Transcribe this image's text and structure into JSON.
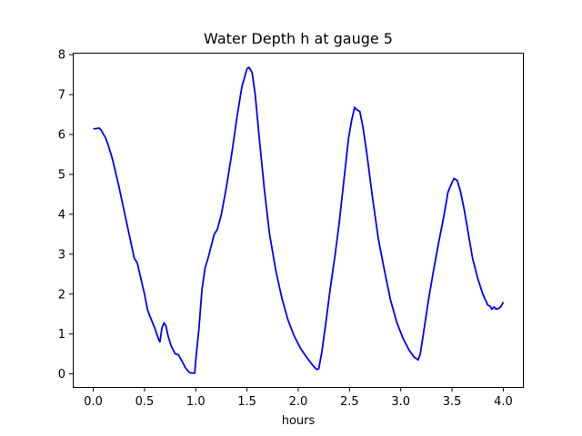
{
  "chart_data": {
    "type": "line",
    "title": "Water Depth h at gauge 5",
    "xlabel": "hours",
    "ylabel": "",
    "xlim": [
      -0.2,
      4.2
    ],
    "ylim": [
      -0.35,
      8.05
    ],
    "x_ticks": [
      0.0,
      0.5,
      1.0,
      1.5,
      2.0,
      2.5,
      3.0,
      3.5,
      4.0
    ],
    "x_tick_labels": [
      "0.0",
      "0.5",
      "1.0",
      "1.5",
      "2.0",
      "2.5",
      "3.0",
      "3.5",
      "4.0"
    ],
    "y_ticks": [
      0,
      1,
      2,
      3,
      4,
      5,
      6,
      7,
      8
    ],
    "y_tick_labels": [
      "0",
      "1",
      "2",
      "3",
      "4",
      "5",
      "6",
      "7",
      "8"
    ],
    "grid": false,
    "series": [
      {
        "color": "#0000ff",
        "points": [
          [
            0.0,
            6.14
          ],
          [
            0.03,
            6.15
          ],
          [
            0.06,
            6.16
          ],
          [
            0.08,
            6.1
          ],
          [
            0.1,
            6.0
          ],
          [
            0.12,
            5.92
          ],
          [
            0.15,
            5.7
          ],
          [
            0.18,
            5.45
          ],
          [
            0.2,
            5.25
          ],
          [
            0.25,
            4.7
          ],
          [
            0.3,
            4.1
          ],
          [
            0.35,
            3.5
          ],
          [
            0.4,
            2.9
          ],
          [
            0.43,
            2.78
          ],
          [
            0.45,
            2.55
          ],
          [
            0.5,
            2.0
          ],
          [
            0.53,
            1.6
          ],
          [
            0.56,
            1.4
          ],
          [
            0.6,
            1.15
          ],
          [
            0.64,
            0.85
          ],
          [
            0.65,
            0.8
          ],
          [
            0.67,
            1.15
          ],
          [
            0.69,
            1.28
          ],
          [
            0.71,
            1.2
          ],
          [
            0.73,
            0.95
          ],
          [
            0.76,
            0.7
          ],
          [
            0.8,
            0.5
          ],
          [
            0.83,
            0.48
          ],
          [
            0.86,
            0.35
          ],
          [
            0.9,
            0.15
          ],
          [
            0.94,
            0.03
          ],
          [
            0.97,
            0.02
          ],
          [
            0.99,
            0.02
          ],
          [
            1.0,
            0.35
          ],
          [
            1.03,
            1.1
          ],
          [
            1.06,
            2.1
          ],
          [
            1.09,
            2.65
          ],
          [
            1.12,
            2.9
          ],
          [
            1.15,
            3.2
          ],
          [
            1.18,
            3.5
          ],
          [
            1.21,
            3.62
          ],
          [
            1.25,
            4.0
          ],
          [
            1.3,
            4.7
          ],
          [
            1.35,
            5.5
          ],
          [
            1.4,
            6.4
          ],
          [
            1.45,
            7.2
          ],
          [
            1.5,
            7.65
          ],
          [
            1.52,
            7.68
          ],
          [
            1.55,
            7.55
          ],
          [
            1.58,
            7.0
          ],
          [
            1.62,
            5.9
          ],
          [
            1.67,
            4.6
          ],
          [
            1.72,
            3.5
          ],
          [
            1.78,
            2.6
          ],
          [
            1.84,
            1.9
          ],
          [
            1.9,
            1.35
          ],
          [
            1.96,
            0.95
          ],
          [
            2.02,
            0.65
          ],
          [
            2.08,
            0.42
          ],
          [
            2.14,
            0.22
          ],
          [
            2.18,
            0.11
          ],
          [
            2.2,
            0.13
          ],
          [
            2.23,
            0.55
          ],
          [
            2.27,
            1.3
          ],
          [
            2.31,
            2.1
          ],
          [
            2.36,
            3.0
          ],
          [
            2.4,
            3.8
          ],
          [
            2.43,
            4.5
          ],
          [
            2.46,
            5.2
          ],
          [
            2.49,
            5.9
          ],
          [
            2.52,
            6.35
          ],
          [
            2.55,
            6.68
          ],
          [
            2.57,
            6.62
          ],
          [
            2.6,
            6.58
          ],
          [
            2.63,
            6.2
          ],
          [
            2.67,
            5.5
          ],
          [
            2.72,
            4.5
          ],
          [
            2.78,
            3.4
          ],
          [
            2.84,
            2.6
          ],
          [
            2.9,
            1.85
          ],
          [
            2.96,
            1.3
          ],
          [
            3.02,
            0.9
          ],
          [
            3.08,
            0.6
          ],
          [
            3.13,
            0.42
          ],
          [
            3.17,
            0.35
          ],
          [
            3.19,
            0.5
          ],
          [
            3.22,
            1.0
          ],
          [
            3.27,
            1.85
          ],
          [
            3.32,
            2.6
          ],
          [
            3.37,
            3.3
          ],
          [
            3.42,
            3.95
          ],
          [
            3.46,
            4.55
          ],
          [
            3.5,
            4.8
          ],
          [
            3.52,
            4.9
          ],
          [
            3.55,
            4.85
          ],
          [
            3.58,
            4.6
          ],
          [
            3.62,
            4.1
          ],
          [
            3.66,
            3.5
          ],
          [
            3.7,
            2.9
          ],
          [
            3.75,
            2.4
          ],
          [
            3.8,
            2.0
          ],
          [
            3.85,
            1.72
          ],
          [
            3.87,
            1.7
          ],
          [
            3.89,
            1.62
          ],
          [
            3.91,
            1.68
          ],
          [
            3.93,
            1.62
          ],
          [
            3.96,
            1.65
          ],
          [
            3.98,
            1.7
          ],
          [
            4.0,
            1.8
          ]
        ]
      }
    ]
  }
}
